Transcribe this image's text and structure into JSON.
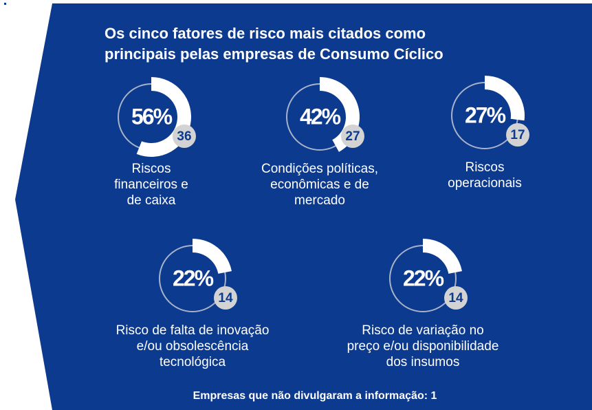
{
  "title_lines": [
    "Os cinco fatores de risco mais citados como",
    "principais pelas empresas de Consumo Cíclico"
  ],
  "items": [
    {
      "value": 56,
      "label": "56%",
      "count": 36,
      "label_lines": [
        "Riscos",
        "financeiros e",
        "de caixa"
      ]
    },
    {
      "value": 42,
      "label": "42%",
      "count": 27,
      "label_lines": [
        "Condições políticas,",
        "econômicas e de",
        "mercado"
      ]
    },
    {
      "value": 27,
      "label": "27%",
      "count": 17,
      "label_lines": [
        "Riscos",
        "operacionais"
      ]
    },
    {
      "value": 22,
      "label": "22%",
      "count": 14,
      "label_lines": [
        "Risco de falta de inovação",
        "e/ou obsolescência",
        "tecnológica"
      ]
    },
    {
      "value": 22,
      "label": "22%",
      "count": 14,
      "label_lines": [
        "Risco de variação no",
        "preço e/ou disponibilidade",
        "dos insumos"
      ]
    }
  ],
  "footer": "Empresas que não divulgaram a informação: 1"
}
